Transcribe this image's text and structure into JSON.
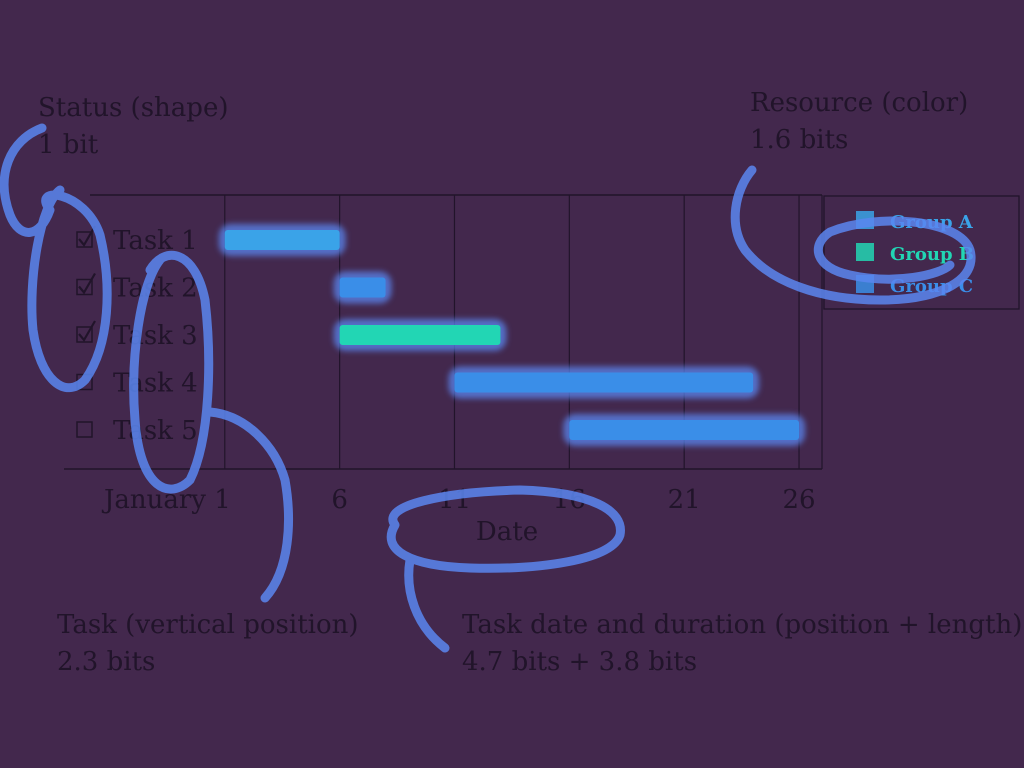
{
  "annotations": {
    "status": {
      "title": "Status (shape)",
      "info": "1 bit"
    },
    "resource": {
      "title": "Resource (color)",
      "info": "1.6 bits"
    },
    "task": {
      "title": "Task (vertical position)",
      "info": "2.3 bits"
    },
    "date": {
      "title": "Task date and duration (position + length)",
      "info": "4.7 bits + 3.8 bits"
    }
  },
  "colors": {
    "background": "#43284d",
    "ink": "#21142a",
    "highlight": "#5a86f0",
    "group_a": "#3aa3e8",
    "group_b": "#22d6b4",
    "group_c": "#3a8ee8"
  },
  "chart_data": {
    "type": "gantt",
    "xlabel": "Date",
    "x_ticks": [
      {
        "value": 1,
        "label": "January 1"
      },
      {
        "value": 6,
        "label": "6"
      },
      {
        "value": 11,
        "label": "11"
      },
      {
        "value": 16,
        "label": "16"
      },
      {
        "value": 21,
        "label": "21"
      },
      {
        "value": 26,
        "label": "26"
      }
    ],
    "xlim": [
      -6,
      27
    ],
    "tasks": [
      {
        "name": "Task 1",
        "start": 1,
        "end": 6,
        "group": "Group A",
        "done": true
      },
      {
        "name": "Task 2",
        "start": 6,
        "end": 8,
        "group": "Group C",
        "done": true
      },
      {
        "name": "Task 3",
        "start": 6,
        "end": 13,
        "group": "Group B",
        "done": true
      },
      {
        "name": "Task 4",
        "start": 11,
        "end": 24,
        "group": "Group C",
        "done": false
      },
      {
        "name": "Task 5",
        "start": 16,
        "end": 26,
        "group": "Group C",
        "done": false
      }
    ],
    "legend": {
      "position": "right",
      "entries": [
        {
          "name": "Group A",
          "color": "#3aa3e8"
        },
        {
          "name": "Group B",
          "color": "#22d6b4"
        },
        {
          "name": "Group C",
          "color": "#3a8ee8"
        }
      ]
    },
    "grid": "vertical"
  }
}
